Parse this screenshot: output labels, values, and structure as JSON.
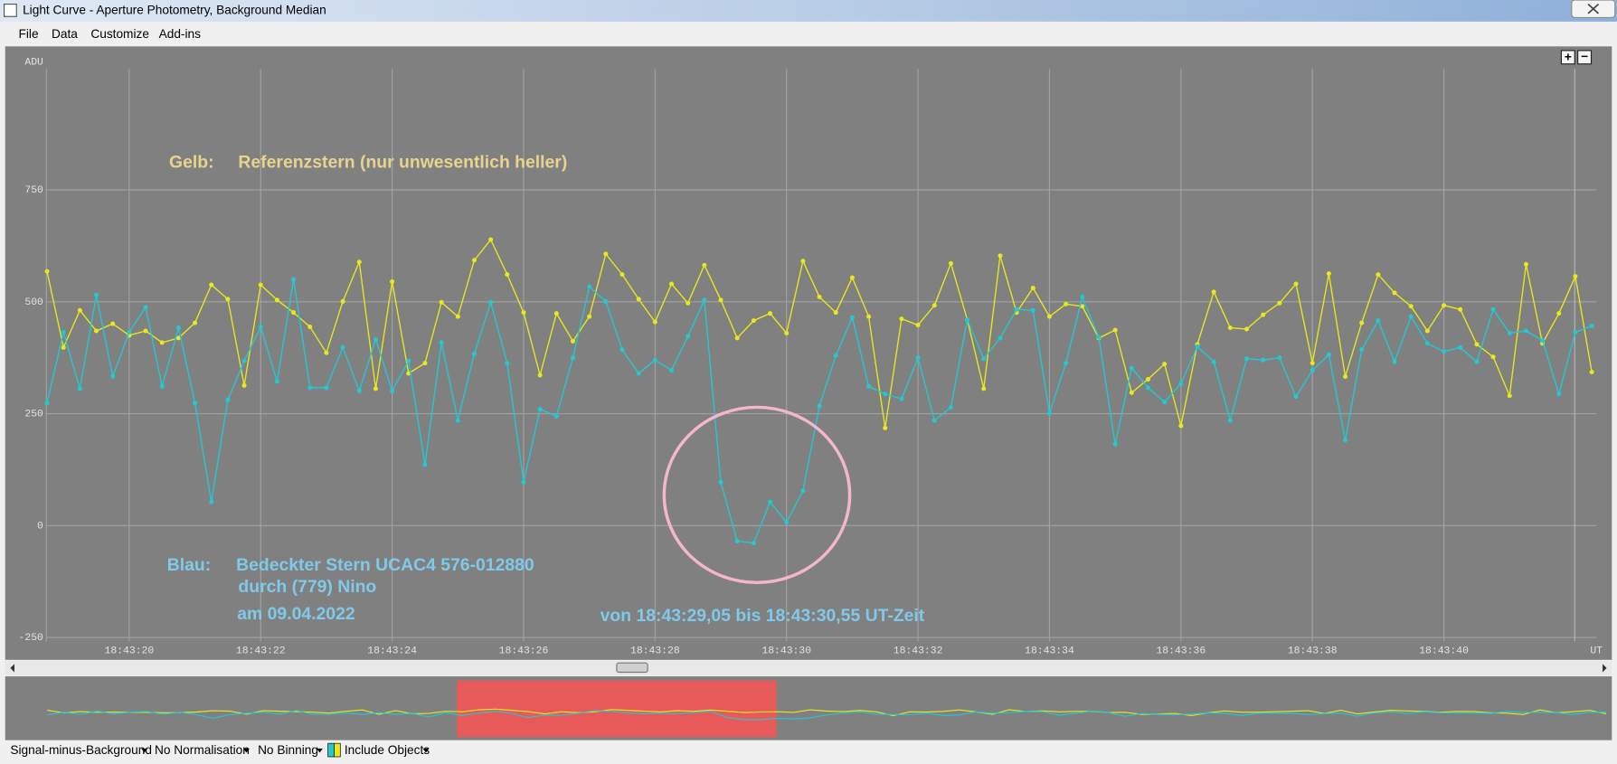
{
  "window": {
    "title": "Light Curve - Aperture Photometry, Background Median"
  },
  "menu": [
    "File",
    "Data",
    "Customize",
    "Add-ins"
  ],
  "zoom_buttons": [
    "+",
    "−"
  ],
  "toolbar": [
    "Signal-minus-Background",
    "No Normalisation",
    "No Binning",
    "Include Objects"
  ],
  "chart_data": {
    "type": "line",
    "y_label": "ADU",
    "x_label": "UT",
    "annotations": [
      "Gelb:",
      "Referenzstern (nur unwesentlich heller)",
      "Blau:",
      "Bedeckter Stern  UCAC4 576-012880",
      "durch (779) Nino",
      "am 09.04.2022",
      "von 18:43:29,05  bis  18:43:30,55 UT-Zeit"
    ],
    "grid": true,
    "xlim": [
      18.16,
      42.32
    ],
    "ylim": [
      -300,
      1020
    ],
    "xticks": [
      {
        "value": 20,
        "label": "18:43:20"
      },
      {
        "value": 22,
        "label": "18:43:22"
      },
      {
        "value": 24,
        "label": "18:43:24"
      },
      {
        "value": 26,
        "label": "18:43:26"
      },
      {
        "value": 28,
        "label": "18:43:28"
      },
      {
        "value": 30,
        "label": "18:43:30"
      },
      {
        "value": 32,
        "label": "18:43:32"
      },
      {
        "value": 34,
        "label": "18:43:34"
      },
      {
        "value": 36,
        "label": "18:43:36"
      },
      {
        "value": 38,
        "label": "18:43:38"
      },
      {
        "value": 40,
        "label": "18:43:40"
      }
    ],
    "yticks": [
      -250,
      0,
      250,
      500,
      750
    ],
    "x": [
      18.75,
      19,
      19.25,
      19.5,
      19.75,
      20,
      20.25,
      20.5,
      20.75,
      21,
      21.25,
      21.5,
      21.75,
      22,
      22.25,
      22.5,
      22.75,
      23,
      23.25,
      23.5,
      23.75,
      24,
      24.25,
      24.5,
      24.75,
      25,
      25.25,
      25.5,
      25.75,
      26,
      26.25,
      26.5,
      26.75,
      27,
      27.25,
      27.5,
      27.75,
      28,
      28.25,
      28.5,
      28.75,
      29,
      29.25,
      29.5,
      29.75,
      30,
      30.25,
      30.5,
      30.75,
      31,
      31.25,
      31.5,
      31.75,
      32,
      32.25,
      32.5,
      32.75,
      33,
      33.25,
      33.5,
      33.75,
      34,
      34.25,
      34.5,
      34.75,
      35,
      35.25,
      35.5,
      35.75,
      36,
      36.25,
      36.5,
      36.75,
      37,
      37.25,
      37.5,
      37.75,
      38,
      38.25,
      38.5,
      38.75,
      39,
      39.25,
      39.5,
      39.75,
      40,
      40.25,
      40.5,
      40.75,
      41,
      41.25,
      41.5,
      41.75,
      42,
      42.25
    ],
    "series": [
      {
        "color": "#e8e81c",
        "values": [
          568,
          398,
          481,
          435,
          451,
          425,
          435,
          409,
          419,
          453,
          538,
          506,
          313,
          538,
          504,
          476,
          444,
          386,
          501,
          589,
          306,
          545,
          340,
          363,
          499,
          467,
          593,
          639,
          561,
          476,
          336,
          474,
          412,
          467,
          607,
          561,
          506,
          455,
          540,
          497,
          582,
          504,
          419,
          458,
          474,
          430,
          591,
          511,
          476,
          554,
          467,
          218,
          462,
          448,
          492,
          586,
          460,
          306,
          603,
          476,
          531,
          467,
          495,
          490,
          419,
          437,
          297,
          327,
          361,
          223,
          405,
          522,
          442,
          439,
          471,
          497,
          540,
          363,
          563,
          333,
          453,
          561,
          520,
          490,
          435,
          492,
          483,
          405,
          377,
          290,
          584,
          407,
          474,
          557,
          343
        ]
      },
      {
        "color": "#22c8d2",
        "values": [
          274,
          432,
          306,
          515,
          333,
          432,
          488,
          311,
          442,
          274,
          53,
          281,
          368,
          444,
          322,
          550,
          308,
          308,
          398,
          301,
          416,
          301,
          368,
          136,
          409,
          235,
          384,
          499,
          363,
          97,
          260,
          244,
          375,
          534,
          501,
          393,
          340,
          370,
          347,
          423,
          504,
          97,
          -35,
          -39,
          53,
          7,
          78,
          267,
          380,
          465,
          311,
          294,
          283,
          375,
          235,
          264,
          460,
          373,
          419,
          483,
          481,
          251,
          363,
          511,
          421,
          182,
          352,
          308,
          276,
          317,
          400,
          366,
          235,
          373,
          370,
          375,
          288,
          347,
          382,
          191,
          393,
          458,
          366,
          467,
          407,
          389,
          398,
          366,
          483,
          430,
          435,
          414,
          294,
          432,
          446
        ]
      }
    ]
  }
}
